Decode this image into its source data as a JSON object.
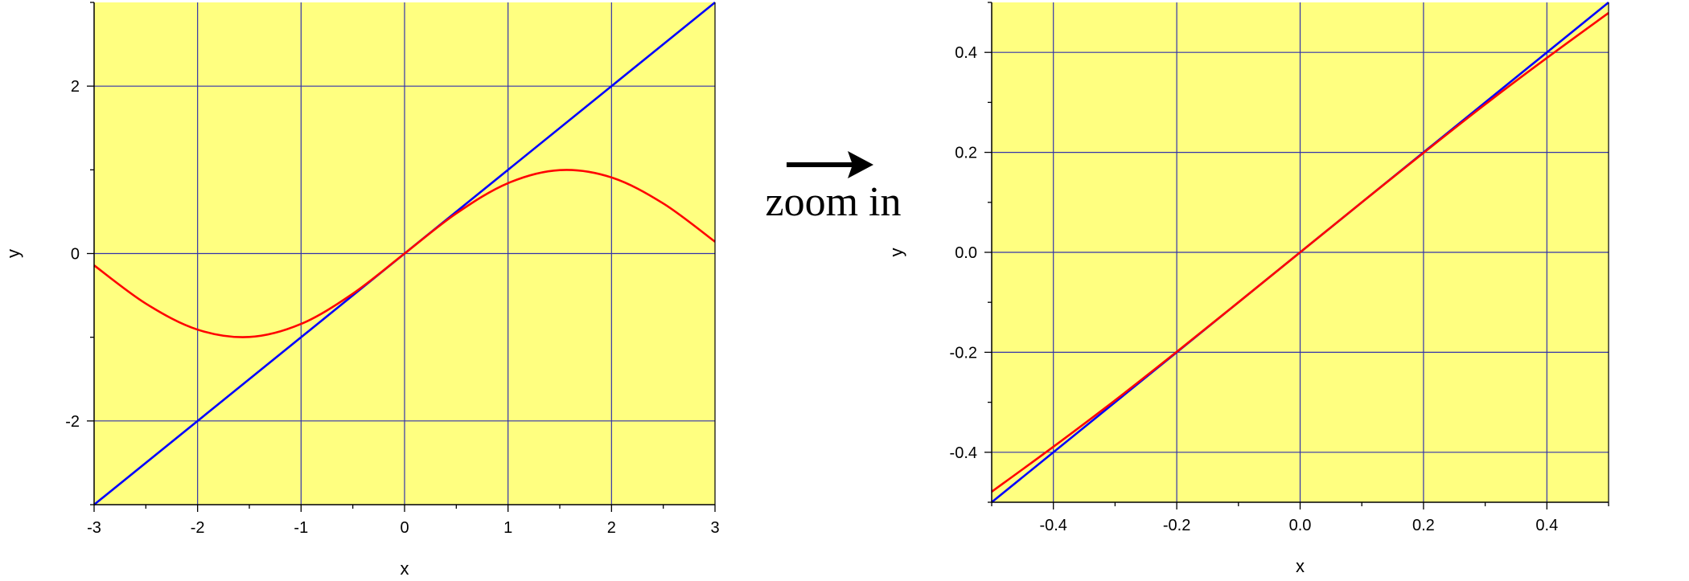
{
  "annotation": {
    "text": "zoom in"
  },
  "colors": {
    "background": "#FFFF80",
    "grid": "#3333AA",
    "line": "#0000FF",
    "sine": "#FF0000",
    "axis": "#000000"
  },
  "chart_data": [
    {
      "type": "line",
      "xlabel": "x",
      "ylabel": "y",
      "xlim": [
        -3,
        3
      ],
      "ylim": [
        -3,
        3
      ],
      "xticks": [
        -3,
        -2,
        -1,
        0,
        1,
        2,
        3
      ],
      "xtick_labels": [
        "-3",
        "-2",
        "-1",
        "0",
        "1",
        "2",
        "3"
      ],
      "yticks": [
        -2,
        0,
        2
      ],
      "ytick_labels": [
        "-2",
        "0",
        "2"
      ],
      "grid": true,
      "series": [
        {
          "color": "#0000FF",
          "x": [
            -3,
            3
          ],
          "y": [
            -3,
            3
          ]
        },
        {
          "color": "#FF0000",
          "x": [
            -3,
            -2.5,
            -2,
            -1.5,
            -1,
            -0.5,
            0,
            0.5,
            1,
            1.5,
            2,
            2.5,
            3
          ],
          "y": [
            -0.141,
            -0.598,
            -0.909,
            -0.997,
            -0.841,
            -0.479,
            0,
            0.479,
            0.841,
            0.997,
            0.909,
            0.598,
            0.141
          ]
        }
      ]
    },
    {
      "type": "line",
      "xlabel": "x",
      "ylabel": "y",
      "xlim": [
        -0.5,
        0.5
      ],
      "ylim": [
        -0.5,
        0.5
      ],
      "xticks": [
        -0.4,
        -0.2,
        0.0,
        0.2,
        0.4
      ],
      "xtick_labels": [
        "-0.4",
        "-0.2",
        "0.0",
        "0.2",
        "0.4"
      ],
      "yticks": [
        -0.4,
        -0.2,
        0.0,
        0.2,
        0.4
      ],
      "ytick_labels": [
        "-0.4",
        "-0.2",
        "0.0",
        "0.2",
        "0.4"
      ],
      "grid": true,
      "series": [
        {
          "color": "#0000FF",
          "x": [
            -0.5,
            0.5
          ],
          "y": [
            -0.5,
            0.5
          ]
        },
        {
          "color": "#FF0000",
          "x": [
            -0.5,
            -0.4,
            -0.3,
            -0.2,
            -0.1,
            0,
            0.1,
            0.2,
            0.3,
            0.4,
            0.5
          ],
          "y": [
            -0.479,
            -0.389,
            -0.296,
            -0.199,
            -0.1,
            0,
            0.1,
            0.199,
            0.296,
            0.389,
            0.479
          ]
        }
      ]
    }
  ]
}
